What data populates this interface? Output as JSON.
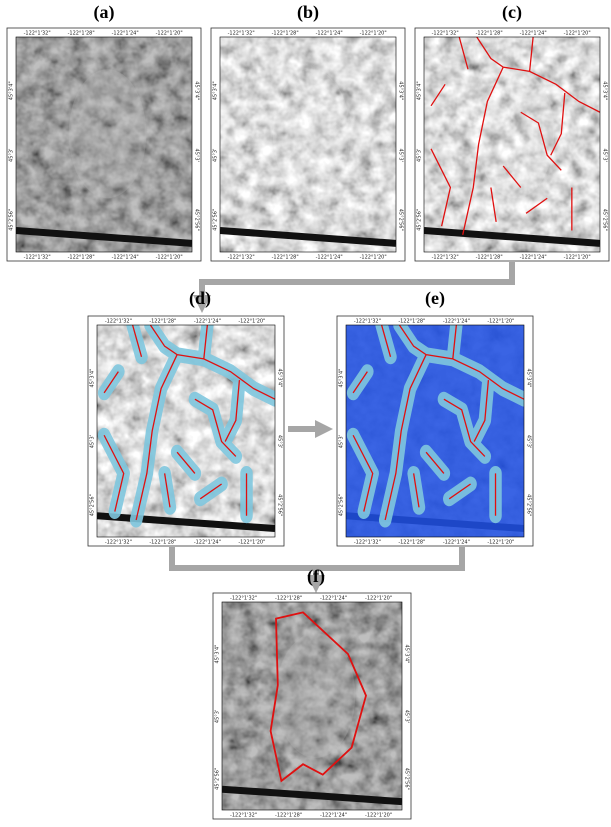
{
  "panels": [
    {
      "label": "(a)"
    },
    {
      "label": "(b)"
    },
    {
      "label": "(c)"
    },
    {
      "label": "(d)"
    },
    {
      "label": "(e)"
    },
    {
      "label": "(f)"
    }
  ],
  "longitude_ticks": [
    "-122°1'32\"",
    "-122°1'28\"",
    "-122°1'24\"",
    "-122°1'20\""
  ],
  "latitude_ticks": [
    "45°3'4\"",
    "45°3'",
    "45°2'56\""
  ]
}
